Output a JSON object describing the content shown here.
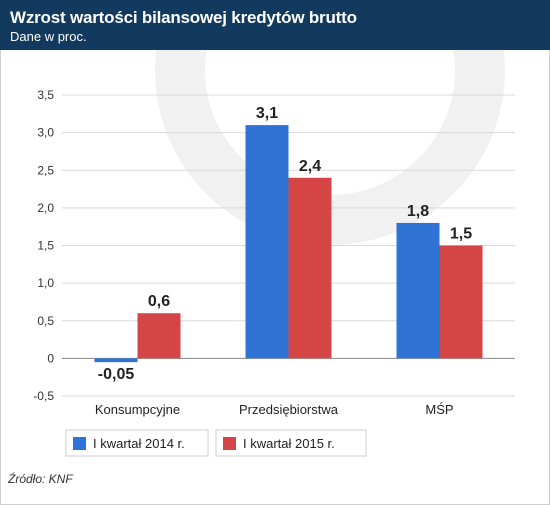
{
  "header": {
    "title": "Wzrost wartości bilansowej kredytów brutto",
    "subtitle": "Dane w proc."
  },
  "source": "Źródło: KNF",
  "colors": {
    "header_bg": "#123a5e",
    "series_2014": "#2f74d4",
    "series_2015": "#d64545"
  },
  "chart_data": {
    "type": "bar",
    "categories": [
      "Konsumpcyjne",
      "Przedsiębiorstwa",
      "MŚP"
    ],
    "series": [
      {
        "name": "I kwartał 2014 r.",
        "values": [
          -0.05,
          3.1,
          1.8
        ],
        "labels": [
          "-0,05",
          "3,1",
          "1,8"
        ],
        "color": "#2f74d4"
      },
      {
        "name": "I kwartał 2015 r.",
        "values": [
          0.6,
          2.4,
          1.5
        ],
        "labels": [
          "0,6",
          "2,4",
          "1,5"
        ],
        "color": "#d64545"
      }
    ],
    "yticks": [
      -0.5,
      0,
      0.5,
      1.0,
      1.5,
      2.0,
      2.5,
      3.0,
      3.5
    ],
    "ytick_labels": [
      "-0,5",
      "0",
      "0,5",
      "1,0",
      "1,5",
      "2,0",
      "2,5",
      "3,0",
      "3,5"
    ],
    "ylim": [
      -0.5,
      3.5
    ],
    "legend_position": "bottom"
  }
}
